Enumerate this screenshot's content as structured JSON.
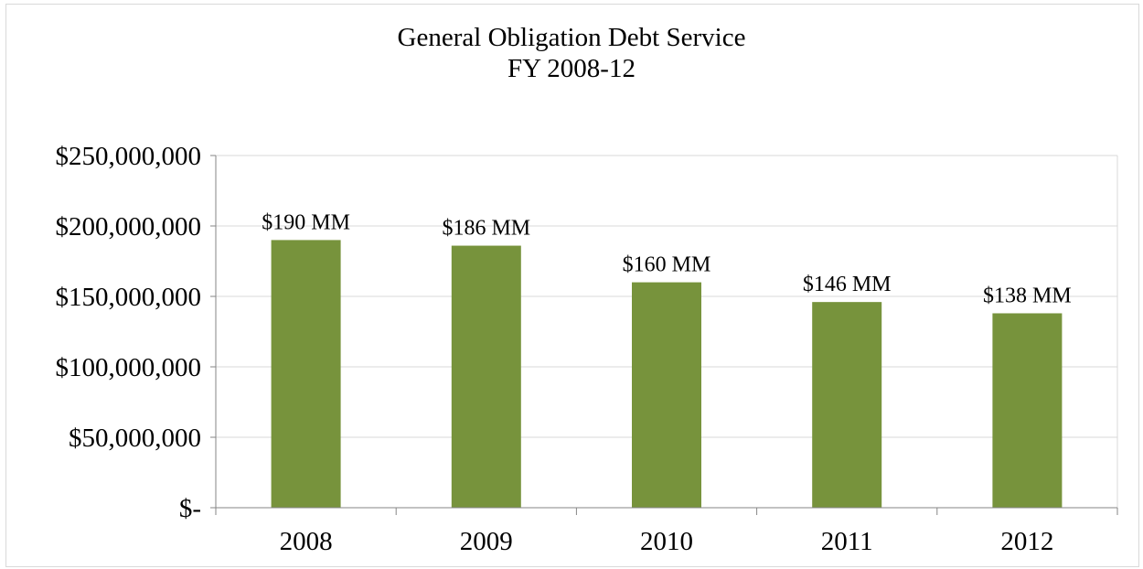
{
  "chart_data": {
    "type": "bar",
    "title": "General Obligation Debt Service",
    "subtitle": "FY 2008-12",
    "categories": [
      "2008",
      "2009",
      "2010",
      "2011",
      "2012"
    ],
    "values": [
      190000000,
      186000000,
      160000000,
      146000000,
      138000000
    ],
    "data_labels": [
      "$190 MM",
      "$186 MM",
      "$160 MM",
      "$146 MM",
      "$138 MM"
    ],
    "y_tick_values": [
      0,
      50000000,
      100000000,
      150000000,
      200000000,
      250000000
    ],
    "y_tick_labels": [
      "$-",
      "$50,000,000",
      "$100,000,000",
      "$150,000,000",
      "$200,000,000",
      "$250,000,000"
    ],
    "ylim": [
      0,
      250000000
    ],
    "xlabel": "",
    "ylabel": "",
    "grid": true,
    "legend": "none",
    "bar_color": "#77933c",
    "grid_color": "#d9d9d9"
  }
}
